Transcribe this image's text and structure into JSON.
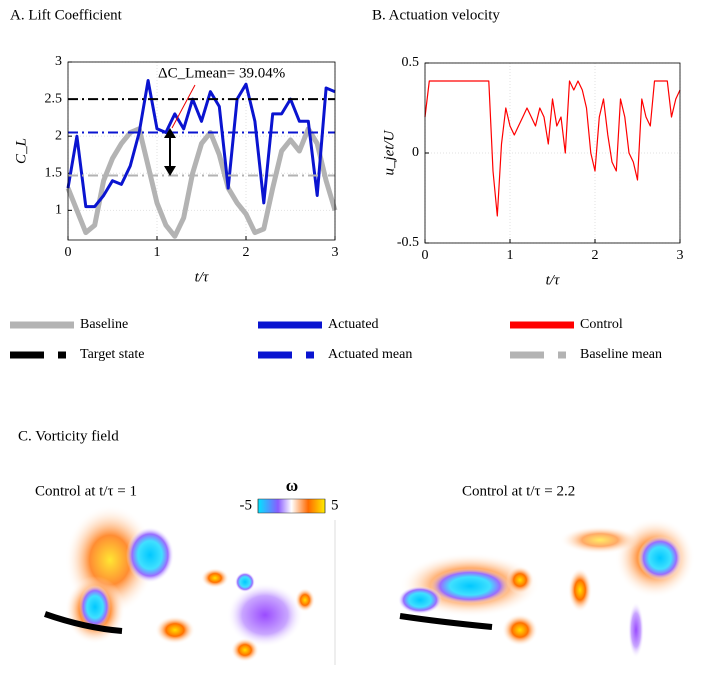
{
  "chart_data": [
    {
      "type": "line",
      "title": "A. Lift Coefficient",
      "xlabel": "t/τ",
      "ylabel": "C_L",
      "annotation": "ΔC_Lmean= 39.04%",
      "xlim": [
        0,
        3
      ],
      "ylim": [
        0.6,
        3
      ],
      "xticks": [
        0,
        1,
        2,
        3
      ],
      "yticks": [
        1,
        1.5,
        2,
        2.5,
        3
      ],
      "grid": true,
      "series": [
        {
          "name": "Baseline",
          "color": "#b3b3b3",
          "style": "solid",
          "width": 5,
          "x": [
            0,
            0.1,
            0.2,
            0.3,
            0.4,
            0.5,
            0.6,
            0.7,
            0.8,
            0.9,
            1,
            1.1,
            1.2,
            1.3,
            1.4,
            1.5,
            1.6,
            1.7,
            1.8,
            1.9,
            2,
            2.1,
            2.2,
            2.3,
            2.4,
            2.5,
            2.6,
            2.7,
            2.8,
            2.9,
            3
          ],
          "values": [
            1.3,
            1.0,
            0.7,
            0.8,
            1.4,
            1.7,
            1.9,
            2.05,
            2.1,
            1.6,
            1.1,
            0.8,
            0.65,
            0.9,
            1.5,
            1.9,
            2.05,
            1.75,
            1.3,
            1.1,
            0.95,
            0.7,
            0.75,
            1.3,
            1.8,
            1.95,
            1.8,
            2.1,
            1.9,
            1.4,
            1.0
          ]
        },
        {
          "name": "Actuated",
          "color": "#0a14d0",
          "style": "solid",
          "width": 3,
          "x": [
            0,
            0.1,
            0.2,
            0.3,
            0.4,
            0.5,
            0.6,
            0.7,
            0.8,
            0.9,
            1,
            1.1,
            1.2,
            1.3,
            1.4,
            1.5,
            1.6,
            1.7,
            1.8,
            1.9,
            2,
            2.1,
            2.2,
            2.3,
            2.4,
            2.5,
            2.6,
            2.7,
            2.8,
            2.9,
            3
          ],
          "values": [
            1.3,
            2.0,
            1.05,
            1.05,
            1.2,
            1.4,
            1.35,
            1.6,
            2.05,
            2.75,
            2.1,
            2.05,
            2.3,
            2.1,
            2.5,
            2.2,
            2.6,
            2.4,
            1.3,
            2.5,
            2.7,
            2.2,
            1.1,
            2.3,
            2.3,
            2.5,
            2.2,
            2.2,
            1.2,
            2.65,
            2.6
          ]
        },
        {
          "name": "Target state",
          "color": "#000000",
          "style": "dashdot",
          "width": 2,
          "x": [
            0,
            3
          ],
          "values": [
            2.5,
            2.5
          ]
        },
        {
          "name": "Actuated mean",
          "color": "#0a14d0",
          "style": "dashdot",
          "width": 2,
          "x": [
            0,
            3
          ],
          "values": [
            2.05,
            2.05
          ]
        },
        {
          "name": "Baseline mean",
          "color": "#b3b3b3",
          "style": "dashdot",
          "width": 2,
          "x": [
            0,
            3
          ],
          "values": [
            1.47,
            1.47
          ]
        }
      ]
    },
    {
      "type": "line",
      "title": "B. Actuation velocity",
      "xlabel": "t/τ",
      "ylabel": "u_jet/U",
      "xlim": [
        0,
        3
      ],
      "ylim": [
        -0.5,
        0.5
      ],
      "xticks": [
        0,
        1,
        2,
        3
      ],
      "yticks": [
        -0.5,
        0,
        0.5
      ],
      "grid": true,
      "series": [
        {
          "name": "Control",
          "color": "#ff0000",
          "style": "solid",
          "width": 1.2,
          "x": [
            0,
            0.05,
            0.1,
            0.15,
            0.2,
            0.25,
            0.3,
            0.35,
            0.4,
            0.45,
            0.5,
            0.55,
            0.6,
            0.65,
            0.7,
            0.75,
            0.8,
            0.85,
            0.9,
            0.95,
            1,
            1.05,
            1.1,
            1.15,
            1.2,
            1.25,
            1.3,
            1.35,
            1.4,
            1.45,
            1.5,
            1.55,
            1.6,
            1.65,
            1.7,
            1.75,
            1.8,
            1.85,
            1.9,
            1.95,
            2,
            2.05,
            2.1,
            2.15,
            2.2,
            2.25,
            2.3,
            2.35,
            2.4,
            2.45,
            2.5,
            2.55,
            2.6,
            2.65,
            2.7,
            2.75,
            2.8,
            2.85,
            2.9,
            2.95,
            3
          ],
          "values": [
            0.2,
            0.4,
            0.4,
            0.4,
            0.4,
            0.4,
            0.4,
            0.4,
            0.4,
            0.4,
            0.4,
            0.4,
            0.4,
            0.4,
            0.4,
            0.4,
            -0.1,
            -0.35,
            0.05,
            0.25,
            0.15,
            0.1,
            0.15,
            0.2,
            0.25,
            0.2,
            0.15,
            0.25,
            0.2,
            0.05,
            0.3,
            0.15,
            0.2,
            0.0,
            0.4,
            0.35,
            0.4,
            0.35,
            0.25,
            0.0,
            -0.1,
            0.2,
            0.3,
            0.1,
            -0.05,
            -0.1,
            0.3,
            0.2,
            0.0,
            -0.05,
            -0.15,
            0.3,
            0.2,
            0.15,
            0.4,
            0.4,
            0.4,
            0.4,
            0.2,
            0.3,
            0.35
          ]
        }
      ]
    }
  ],
  "vorticity": {
    "title": "C. Vorticity field",
    "left_label": "Control at t/τ = 1",
    "right_label": "Control at t/τ = 2.2",
    "colorbar": {
      "label": "ω",
      "ticks": [
        -5,
        5
      ]
    }
  }
}
